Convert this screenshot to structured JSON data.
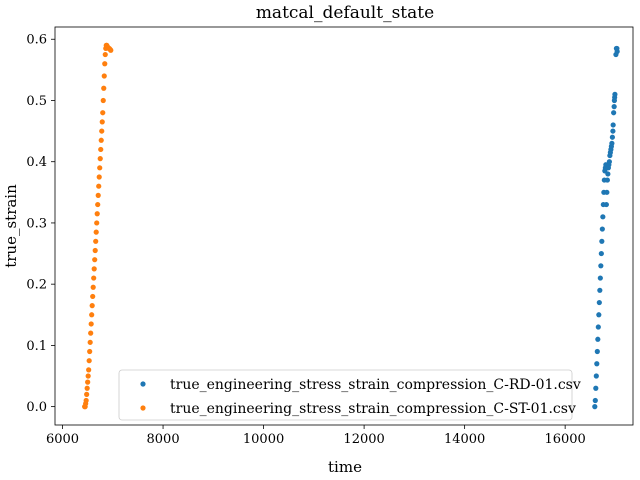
{
  "chart_data": {
    "type": "scatter",
    "title": "matcal_default_state",
    "xlabel": "time",
    "ylabel": "true_strain",
    "xlim": [
      5850,
      17350
    ],
    "ylim": [
      -0.03,
      0.62
    ],
    "xticks": [
      6000,
      8000,
      10000,
      12000,
      14000,
      16000
    ],
    "yticks": [
      0.0,
      0.1,
      0.2,
      0.3,
      0.4,
      0.5,
      0.6
    ],
    "xtick_labels": [
      "6000",
      "8000",
      "10000",
      "12000",
      "14000",
      "16000"
    ],
    "ytick_labels": [
      "0.0",
      "0.1",
      "0.2",
      "0.3",
      "0.4",
      "0.5",
      "0.6"
    ],
    "legend_position": "lower center",
    "series": [
      {
        "name": "true_engineering_stress_strain_compression_C-RD-01.csv",
        "color": "#1f77b4",
        "x": [
          16590,
          16600,
          16610,
          16620,
          16630,
          16640,
          16650,
          16660,
          16670,
          16680,
          16690,
          16700,
          16710,
          16720,
          16730,
          16740,
          16750,
          16760,
          16770,
          16780,
          16790,
          16800,
          16810,
          16820,
          16830,
          16840,
          16850,
          16860,
          16870,
          16880,
          16890,
          16900,
          16910,
          16920,
          16930,
          16940,
          16950,
          16955,
          16965,
          16975,
          16980,
          16985,
          16990,
          17010,
          17020,
          17030,
          17035
        ],
        "y": [
          0.0,
          0.01,
          0.03,
          0.05,
          0.07,
          0.09,
          0.11,
          0.13,
          0.15,
          0.17,
          0.19,
          0.21,
          0.23,
          0.25,
          0.27,
          0.29,
          0.31,
          0.33,
          0.35,
          0.37,
          0.385,
          0.39,
          0.395,
          0.33,
          0.35,
          0.37,
          0.38,
          0.39,
          0.395,
          0.4,
          0.41,
          0.415,
          0.42,
          0.425,
          0.43,
          0.44,
          0.45,
          0.46,
          0.48,
          0.49,
          0.5,
          0.505,
          0.51,
          0.575,
          0.585,
          0.585,
          0.58
        ]
      },
      {
        "name": "true_engineering_stress_strain_compression_C-ST-01.csv",
        "color": "#ff7f0e",
        "x": [
          6440,
          6450,
          6460,
          6470,
          6480,
          6490,
          6500,
          6510,
          6520,
          6530,
          6540,
          6550,
          6560,
          6570,
          6580,
          6590,
          6600,
          6610,
          6620,
          6630,
          6640,
          6650,
          6660,
          6670,
          6680,
          6690,
          6700,
          6710,
          6720,
          6730,
          6740,
          6750,
          6760,
          6770,
          6780,
          6790,
          6800,
          6810,
          6820,
          6830,
          6840,
          6850,
          6860,
          6870,
          6880,
          6890,
          6900,
          6910,
          6920,
          6930,
          6940,
          6950,
          6960
        ],
        "y": [
          0.0,
          0.0,
          0.005,
          0.01,
          0.02,
          0.03,
          0.04,
          0.05,
          0.06,
          0.075,
          0.09,
          0.105,
          0.12,
          0.135,
          0.15,
          0.165,
          0.18,
          0.195,
          0.21,
          0.225,
          0.24,
          0.255,
          0.27,
          0.285,
          0.3,
          0.315,
          0.33,
          0.345,
          0.36,
          0.375,
          0.39,
          0.405,
          0.42,
          0.435,
          0.45,
          0.465,
          0.48,
          0.5,
          0.52,
          0.54,
          0.56,
          0.575,
          0.585,
          0.59,
          0.59,
          0.588,
          0.587,
          0.586,
          0.585,
          0.585,
          0.584,
          0.583,
          0.582
        ]
      }
    ]
  }
}
